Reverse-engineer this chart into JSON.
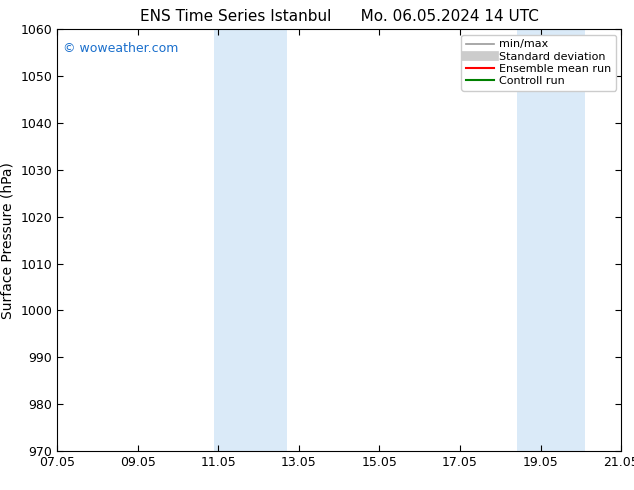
{
  "title_left": "ENS Time Series Istanbul",
  "title_right": "Mo. 06.05.2024 14 UTC",
  "ylabel": "Surface Pressure (hPa)",
  "ylim": [
    970,
    1060
  ],
  "yticks": [
    970,
    980,
    990,
    1000,
    1010,
    1020,
    1030,
    1040,
    1050,
    1060
  ],
  "xtick_labels": [
    "07.05",
    "09.05",
    "11.05",
    "13.05",
    "15.05",
    "17.05",
    "19.05",
    "21.05"
  ],
  "xmin": 0,
  "xmax": 14,
  "shaded_regions": [
    {
      "x_start": 3.9,
      "x_end": 5.7,
      "color": "#daeaf8"
    },
    {
      "x_start": 11.4,
      "x_end": 13.1,
      "color": "#daeaf8"
    }
  ],
  "watermark_text": "© woweather.com",
  "watermark_color": "#1a6fcc",
  "background_color": "#ffffff",
  "legend_entries": [
    {
      "label": "min/max",
      "color": "#999999",
      "lw": 1.2,
      "style": "line"
    },
    {
      "label": "Standard deviation",
      "color": "#cccccc",
      "lw": 7,
      "style": "line"
    },
    {
      "label": "Ensemble mean run",
      "color": "#ff0000",
      "lw": 1.5,
      "style": "line"
    },
    {
      "label": "Controll run",
      "color": "#008000",
      "lw": 1.5,
      "style": "line"
    }
  ],
  "title_fontsize": 11,
  "tick_label_fontsize": 9,
  "ylabel_fontsize": 10,
  "legend_fontsize": 8,
  "watermark_fontsize": 9
}
